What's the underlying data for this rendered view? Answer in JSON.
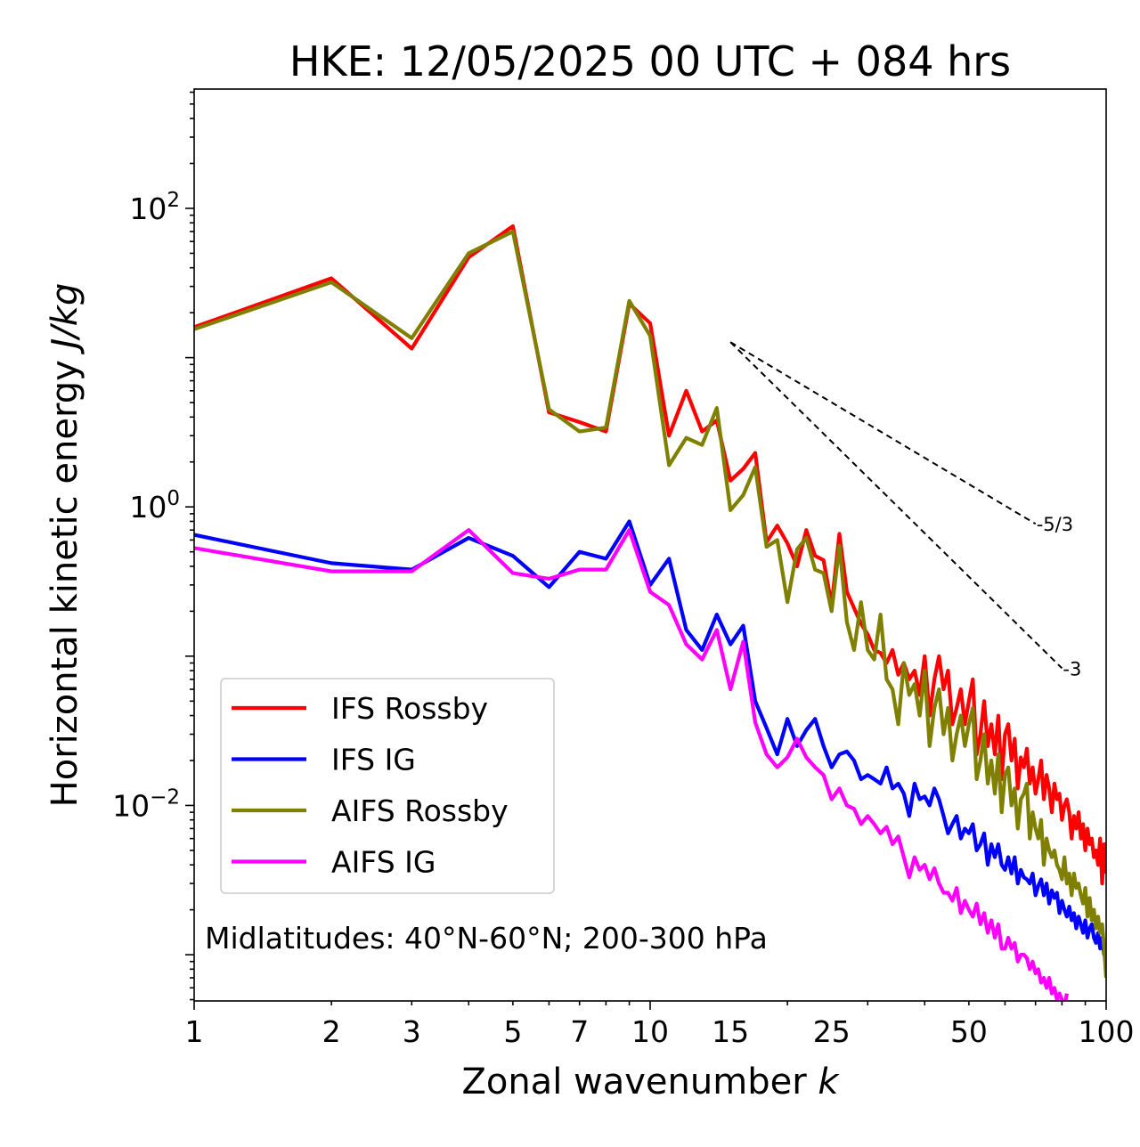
{
  "chart_data": {
    "type": "line",
    "title": "HKE: 12/05/2025 00 UTC + 084 hrs",
    "xlabel_main": "Zonal wavenumber ",
    "xlabel_var": "k",
    "ylabel_main": "Horizontal kinetic energy ",
    "ylabel_unit": "J/kg",
    "xscale": "log",
    "yscale": "log",
    "xlim": [
      1,
      100
    ],
    "ylim": [
      0.00049,
      630
    ],
    "x_ticks": [
      {
        "value": 1,
        "label": "1"
      },
      {
        "value": 2,
        "label": "2"
      },
      {
        "value": 3,
        "label": "3"
      },
      {
        "value": 5,
        "label": "5"
      },
      {
        "value": 7,
        "label": "7"
      },
      {
        "value": 10,
        "label": "10"
      },
      {
        "value": 15,
        "label": "15"
      },
      {
        "value": 25,
        "label": "25"
      },
      {
        "value": 50,
        "label": "50"
      },
      {
        "value": 100,
        "label": "100"
      }
    ],
    "y_ticks": [
      {
        "value": 0.01,
        "base": "10",
        "exp": "−2"
      },
      {
        "value": 1,
        "base": "10",
        "exp": "0"
      },
      {
        "value": 100,
        "base": "10",
        "exp": "2"
      }
    ],
    "annotation": "Midlatitudes: 40°N-60°N; 200-300 hPa",
    "legend_position": "lower-left",
    "slope_refs": [
      {
        "label": "-5/3",
        "x": [
          15,
          70
        ],
        "y": [
          12.7,
          0.77
        ]
      },
      {
        "label": "-3",
        "x": [
          15,
          80
        ],
        "y": [
          12.7,
          0.083
        ]
      }
    ],
    "series": [
      {
        "name": "IFS Rossby",
        "color": "#ff0000",
        "x": [
          1,
          2,
          3,
          4,
          5,
          6,
          7,
          8,
          9,
          10,
          11,
          12,
          13,
          14,
          15,
          16,
          17,
          18,
          19,
          20,
          21,
          22,
          23,
          24,
          25,
          26,
          27,
          28,
          29,
          30,
          31,
          32,
          33,
          34,
          35,
          36,
          37,
          38,
          39,
          40,
          41,
          42,
          43,
          44,
          45,
          46,
          47,
          48,
          49,
          50,
          51,
          52,
          53,
          54,
          55,
          56,
          57,
          58,
          59,
          60,
          61,
          62,
          63,
          64,
          65,
          66,
          67,
          68,
          69,
          70,
          71,
          72,
          73,
          74,
          75,
          76,
          77,
          78,
          79,
          80,
          81,
          82,
          83,
          84,
          85,
          86,
          87,
          88,
          89,
          90,
          91,
          92,
          93,
          94,
          95,
          96,
          97,
          98,
          99,
          100
        ],
        "y": [
          16,
          34,
          11.5,
          47,
          76,
          4.3,
          3.7,
          3.2,
          23,
          17,
          3,
          6,
          3.2,
          3.8,
          1.5,
          1.8,
          2.3,
          0.58,
          0.75,
          0.57,
          0.4,
          0.7,
          0.47,
          0.44,
          0.22,
          0.66,
          0.27,
          0.21,
          0.165,
          0.14,
          0.11,
          0.105,
          0.09,
          0.11,
          0.075,
          0.09,
          0.07,
          0.08,
          0.055,
          0.1,
          0.04,
          0.07,
          0.1,
          0.06,
          0.08,
          0.035,
          0.045,
          0.06,
          0.035,
          0.05,
          0.07,
          0.022,
          0.03,
          0.05,
          0.025,
          0.035,
          0.022,
          0.04,
          0.015,
          0.03,
          0.035,
          0.02,
          0.028,
          0.013,
          0.021,
          0.018,
          0.024,
          0.014,
          0.018,
          0.012,
          0.015,
          0.02,
          0.011,
          0.016,
          0.013,
          0.009,
          0.014,
          0.011,
          0.012,
          0.008,
          0.01,
          0.011,
          0.009,
          0.006,
          0.0085,
          0.007,
          0.009,
          0.006,
          0.0075,
          0.005,
          0.007,
          0.0055,
          0.006,
          0.0045,
          0.005,
          0.004,
          0.006,
          0.003,
          0.0055,
          0.0035
        ]
      },
      {
        "name": "IFS IG",
        "color": "#0000ff",
        "x": [
          1,
          2,
          3,
          4,
          5,
          6,
          7,
          8,
          9,
          10,
          11,
          12,
          13,
          14,
          15,
          16,
          17,
          18,
          19,
          20,
          21,
          22,
          23,
          24,
          25,
          26,
          27,
          28,
          29,
          30,
          31,
          32,
          33,
          34,
          35,
          36,
          37,
          38,
          39,
          40,
          41,
          42,
          43,
          44,
          45,
          46,
          47,
          48,
          49,
          50,
          51,
          52,
          53,
          54,
          55,
          56,
          57,
          58,
          59,
          60,
          61,
          62,
          63,
          64,
          65,
          66,
          67,
          68,
          69,
          70,
          71,
          72,
          73,
          74,
          75,
          76,
          77,
          78,
          79,
          80,
          81,
          82,
          83,
          84,
          85,
          86,
          87,
          88,
          89,
          90,
          91,
          92,
          93,
          94,
          95,
          96,
          97,
          98,
          99,
          100
        ],
        "y": [
          0.65,
          0.42,
          0.38,
          0.62,
          0.47,
          0.29,
          0.5,
          0.45,
          0.8,
          0.3,
          0.45,
          0.15,
          0.11,
          0.19,
          0.12,
          0.16,
          0.05,
          0.033,
          0.022,
          0.038,
          0.025,
          0.032,
          0.038,
          0.025,
          0.018,
          0.022,
          0.023,
          0.02,
          0.015,
          0.016,
          0.015,
          0.014,
          0.018,
          0.013,
          0.014,
          0.012,
          0.0085,
          0.014,
          0.011,
          0.0115,
          0.01,
          0.013,
          0.011,
          0.0085,
          0.0065,
          0.0075,
          0.0085,
          0.006,
          0.007,
          0.0065,
          0.0075,
          0.005,
          0.0055,
          0.0065,
          0.004,
          0.0055,
          0.0045,
          0.0055,
          0.004,
          0.0037,
          0.0045,
          0.0035,
          0.0045,
          0.003,
          0.0037,
          0.0033,
          0.0032,
          0.003,
          0.0035,
          0.0025,
          0.0029,
          0.0032,
          0.0025,
          0.003,
          0.0022,
          0.0027,
          0.0024,
          0.0026,
          0.0019,
          0.0023,
          0.002,
          0.0018,
          0.0021,
          0.0017,
          0.0019,
          0.0015,
          0.0018,
          0.0016,
          0.0014,
          0.0017,
          0.0013,
          0.0015,
          0.0016,
          0.0013,
          0.0012,
          0.0014,
          0.0011,
          0.0013,
          0.001,
          0.0012
        ]
      },
      {
        "name": "AIFS Rossby",
        "color": "#808000",
        "x": [
          1,
          2,
          3,
          4,
          5,
          6,
          7,
          8,
          9,
          10,
          11,
          12,
          13,
          14,
          15,
          16,
          17,
          18,
          19,
          20,
          21,
          22,
          23,
          24,
          25,
          26,
          27,
          28,
          29,
          30,
          31,
          32,
          33,
          34,
          35,
          36,
          37,
          38,
          39,
          40,
          41,
          42,
          43,
          44,
          45,
          46,
          47,
          48,
          49,
          50,
          51,
          52,
          53,
          54,
          55,
          56,
          57,
          58,
          59,
          60,
          61,
          62,
          63,
          64,
          65,
          66,
          67,
          68,
          69,
          70,
          71,
          72,
          73,
          74,
          75,
          76,
          77,
          78,
          79,
          80,
          81,
          82,
          83,
          84,
          85,
          86,
          87,
          88,
          89,
          90,
          91,
          92,
          93,
          94,
          95,
          96,
          97,
          98,
          99,
          100
        ],
        "y": [
          15.5,
          32,
          13.5,
          50,
          70,
          4.5,
          3.2,
          3.4,
          24,
          14,
          1.9,
          2.9,
          2.6,
          4.6,
          0.95,
          1.2,
          1.85,
          0.54,
          0.6,
          0.23,
          0.52,
          0.62,
          0.38,
          0.36,
          0.2,
          0.55,
          0.17,
          0.11,
          0.23,
          0.11,
          0.095,
          0.19,
          0.07,
          0.06,
          0.035,
          0.09,
          0.055,
          0.065,
          0.04,
          0.08,
          0.025,
          0.045,
          0.06,
          0.03,
          0.045,
          0.02,
          0.03,
          0.04,
          0.025,
          0.035,
          0.045,
          0.015,
          0.02,
          0.03,
          0.014,
          0.02,
          0.012,
          0.022,
          0.009,
          0.016,
          0.018,
          0.01,
          0.013,
          0.007,
          0.011,
          0.012,
          0.014,
          0.006,
          0.009,
          0.007,
          0.006,
          0.008,
          0.004,
          0.006,
          0.005,
          0.0045,
          0.005,
          0.004,
          0.0037,
          0.0032,
          0.0045,
          0.003,
          0.0035,
          0.0025,
          0.0035,
          0.0028,
          0.003,
          0.0025,
          0.0022,
          0.0028,
          0.0018,
          0.0024,
          0.0017,
          0.002,
          0.0015,
          0.0018,
          0.0014,
          0.0016,
          0.0011,
          0.0007
        ]
      },
      {
        "name": "AIFS IG",
        "color": "#ff00ff",
        "x": [
          1,
          2,
          3,
          4,
          5,
          6,
          7,
          8,
          9,
          10,
          11,
          12,
          13,
          14,
          15,
          16,
          17,
          18,
          19,
          20,
          21,
          22,
          23,
          24,
          25,
          26,
          27,
          28,
          29,
          30,
          31,
          32,
          33,
          34,
          35,
          36,
          37,
          38,
          39,
          40,
          41,
          42,
          43,
          44,
          45,
          46,
          47,
          48,
          49,
          50,
          51,
          52,
          53,
          54,
          55,
          56,
          57,
          58,
          59,
          60,
          61,
          62,
          63,
          64,
          65,
          66,
          67,
          68,
          69,
          70,
          71,
          72,
          73,
          74,
          75,
          76,
          77,
          78,
          79,
          80,
          81,
          82
        ],
        "y": [
          0.53,
          0.37,
          0.37,
          0.7,
          0.36,
          0.33,
          0.38,
          0.38,
          0.7,
          0.27,
          0.22,
          0.12,
          0.095,
          0.15,
          0.06,
          0.125,
          0.036,
          0.022,
          0.018,
          0.021,
          0.028,
          0.021,
          0.018,
          0.016,
          0.011,
          0.013,
          0.01,
          0.0095,
          0.0075,
          0.0085,
          0.0075,
          0.0065,
          0.0072,
          0.0055,
          0.0062,
          0.0045,
          0.0033,
          0.0045,
          0.0037,
          0.004,
          0.0032,
          0.0038,
          0.003,
          0.0026,
          0.0026,
          0.0023,
          0.0028,
          0.0019,
          0.0023,
          0.002,
          0.0018,
          0.0022,
          0.0016,
          0.0019,
          0.0014,
          0.0017,
          0.0013,
          0.0016,
          0.0011,
          0.0011,
          0.0013,
          0.0011,
          0.0012,
          0.0009,
          0.001,
          0.001,
          0.00095,
          0.0008,
          0.0009,
          0.00075,
          0.0008,
          0.00065,
          0.0007,
          0.0006,
          0.0007,
          0.00055,
          0.0006,
          0.0005,
          0.00055,
          0.0005,
          0.00045,
          0.00055
        ]
      }
    ]
  }
}
